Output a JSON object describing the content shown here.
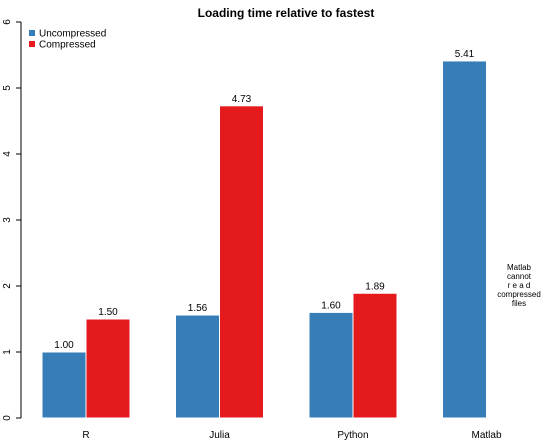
{
  "chart_data": {
    "type": "bar",
    "title": "Loading time relative to fastest",
    "xlabel": "",
    "ylabel": "",
    "categories": [
      "R",
      "Julia",
      "Python",
      "Matlab"
    ],
    "series": [
      {
        "name": "Uncompressed",
        "color": "#377EB8",
        "values": [
          1.0,
          1.56,
          1.6,
          5.41
        ]
      },
      {
        "name": "Compressed",
        "color": "#E41A1C",
        "values": [
          1.5,
          4.73,
          1.89,
          null
        ]
      }
    ],
    "value_labels": [
      [
        "1.00",
        "1.56",
        "1.60",
        "5.41"
      ],
      [
        "1.50",
        "4.73",
        "1.89",
        ""
      ]
    ],
    "ylim": [
      0,
      6
    ],
    "yticks": [
      "0",
      "1",
      "2",
      "3",
      "4",
      "5",
      "6"
    ],
    "legend_position": "top-left",
    "grid": false,
    "annotation": {
      "category": "Matlab",
      "lines": [
        "Matlab",
        "cannot",
        "r e a d",
        "compressed",
        "files"
      ]
    }
  }
}
